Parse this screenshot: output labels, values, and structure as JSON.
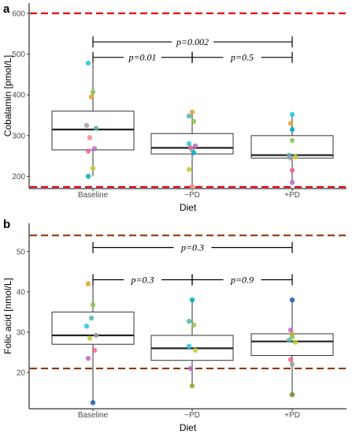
{
  "chart_data": [
    {
      "panel": "a",
      "type": "box",
      "categories": [
        "Baseline",
        "−PD",
        "+PD"
      ],
      "xlabel": "Diet",
      "ylabel": "Cobalamin [pmol/L]",
      "ylim": [
        170,
        625
      ],
      "yticks": [
        200,
        300,
        400,
        500,
        600
      ],
      "reference_lines": [
        {
          "y": 600,
          "color": "#e8000b",
          "style": "dashed"
        },
        {
          "y": 174,
          "color": "#e8000b",
          "style": "dashed"
        }
      ],
      "boxes": [
        {
          "q1": 265,
          "median": 315,
          "q3": 360,
          "whisker_low": 200,
          "whisker_high": 478
        },
        {
          "q1": 255,
          "median": 270,
          "q3": 305,
          "whisker_low": 175,
          "whisker_high": 358
        },
        {
          "q1": 245,
          "median": 252,
          "q3": 300,
          "whisker_low": 185,
          "whisker_high": 352
        }
      ],
      "points": [
        [
          {
            "y": 478,
            "color": "#26c6da"
          },
          {
            "y": 407,
            "color": "#8bc34a"
          },
          {
            "y": 395,
            "color": "#e0a030"
          },
          {
            "y": 325,
            "color": "#9e9e9e"
          },
          {
            "y": 318,
            "color": "#4db6ac"
          },
          {
            "y": 295,
            "color": "#ef8a80"
          },
          {
            "y": 268,
            "color": "#ba68c8"
          },
          {
            "y": 262,
            "color": "#f06292"
          },
          {
            "y": 220,
            "color": "#c0ca33"
          },
          {
            "y": 200,
            "color": "#00acc1"
          }
        ],
        [
          {
            "y": 358,
            "color": "#e0a030"
          },
          {
            "y": 348,
            "color": "#4db6ac"
          },
          {
            "y": 335,
            "color": "#8bc34a"
          },
          {
            "y": 280,
            "color": "#26c6da"
          },
          {
            "y": 275,
            "color": "#ba68c8"
          },
          {
            "y": 270,
            "color": "#f06292"
          },
          {
            "y": 265,
            "color": "#9e9e9e"
          },
          {
            "y": 258,
            "color": "#00acc1"
          },
          {
            "y": 217,
            "color": "#c0ca33"
          },
          {
            "y": 175,
            "color": "#ef8a80"
          }
        ],
        [
          {
            "y": 352,
            "color": "#26c6da"
          },
          {
            "y": 330,
            "color": "#e0a030"
          },
          {
            "y": 315,
            "color": "#00acc1"
          },
          {
            "y": 288,
            "color": "#8bc34a"
          },
          {
            "y": 252,
            "color": "#4db6ac"
          },
          {
            "y": 248,
            "color": "#c0ca33"
          },
          {
            "y": 245,
            "color": "#9e9e9e"
          },
          {
            "y": 215,
            "color": "#f06292"
          },
          {
            "y": 185,
            "color": "#ba68c8"
          }
        ]
      ],
      "comparisons": [
        {
          "from": 0,
          "to": 2,
          "label": "p=0.002",
          "y": 530
        },
        {
          "from": 0,
          "to": 1,
          "label": "p=0.01",
          "y": 492
        },
        {
          "from": 1,
          "to": 2,
          "label": "p=0.5",
          "y": 492
        }
      ]
    },
    {
      "panel": "b",
      "type": "box",
      "categories": [
        "Baseline",
        "−PD",
        "+PD"
      ],
      "xlabel": "Diet",
      "ylabel": "Folic acid [nmol/L]",
      "ylim": [
        11,
        57
      ],
      "yticks": [
        20,
        30,
        40,
        50
      ],
      "reference_lines": [
        {
          "y": 54,
          "color": "#8b3a0f",
          "style": "dashed"
        },
        {
          "y": 21,
          "color": "#8b3a0f",
          "style": "dashed"
        }
      ],
      "boxes": [
        {
          "q1": 27,
          "median": 29.2,
          "q3": 35,
          "whisker_low": 12.5,
          "whisker_high": 42
        },
        {
          "q1": 23,
          "median": 26,
          "q3": 29.2,
          "whisker_low": 16.7,
          "whisker_high": 38
        },
        {
          "q1": 24.2,
          "median": 27.7,
          "q3": 29.6,
          "whisker_low": 14.5,
          "whisker_high": 38
        }
      ],
      "points": [
        [
          {
            "y": 42,
            "color": "#e0a030"
          },
          {
            "y": 36.8,
            "color": "#8bc34a"
          },
          {
            "y": 33.5,
            "color": "#4db6ac"
          },
          {
            "y": 31.5,
            "color": "#26c6da"
          },
          {
            "y": 29.2,
            "color": "#9e9e9e"
          },
          {
            "y": 28.5,
            "color": "#c0ca33"
          },
          {
            "y": 25.5,
            "color": "#f06292"
          },
          {
            "y": 23.5,
            "color": "#ba68c8"
          },
          {
            "y": 12.5,
            "color": "#1e5aa8"
          }
        ],
        [
          {
            "y": 38,
            "color": "#00acc1"
          },
          {
            "y": 32.7,
            "color": "#4db6ac"
          },
          {
            "y": 31.8,
            "color": "#8bc34a"
          },
          {
            "y": 26.5,
            "color": "#26c6da"
          },
          {
            "y": 25.5,
            "color": "#c0ca33"
          },
          {
            "y": 21,
            "color": "#ba68c8"
          },
          {
            "y": 16.7,
            "color": "#a0a030"
          }
        ],
        [
          {
            "y": 38,
            "color": "#1e5aa8"
          },
          {
            "y": 30.5,
            "color": "#ba68c8"
          },
          {
            "y": 29.5,
            "color": "#e0a030"
          },
          {
            "y": 28.8,
            "color": "#8bc34a"
          },
          {
            "y": 28,
            "color": "#4db6ac"
          },
          {
            "y": 27.5,
            "color": "#c0ca33"
          },
          {
            "y": 23.2,
            "color": "#f06292"
          },
          {
            "y": 22,
            "color": "#9e9e9e"
          },
          {
            "y": 14.5,
            "color": "#6b8e23"
          }
        ]
      ],
      "comparisons": [
        {
          "from": 0,
          "to": 2,
          "label": "p=0.3",
          "y": 51
        },
        {
          "from": 0,
          "to": 1,
          "label": "p=0.3",
          "y": 43
        },
        {
          "from": 1,
          "to": 2,
          "label": "p=0.9",
          "y": 43
        }
      ]
    }
  ]
}
